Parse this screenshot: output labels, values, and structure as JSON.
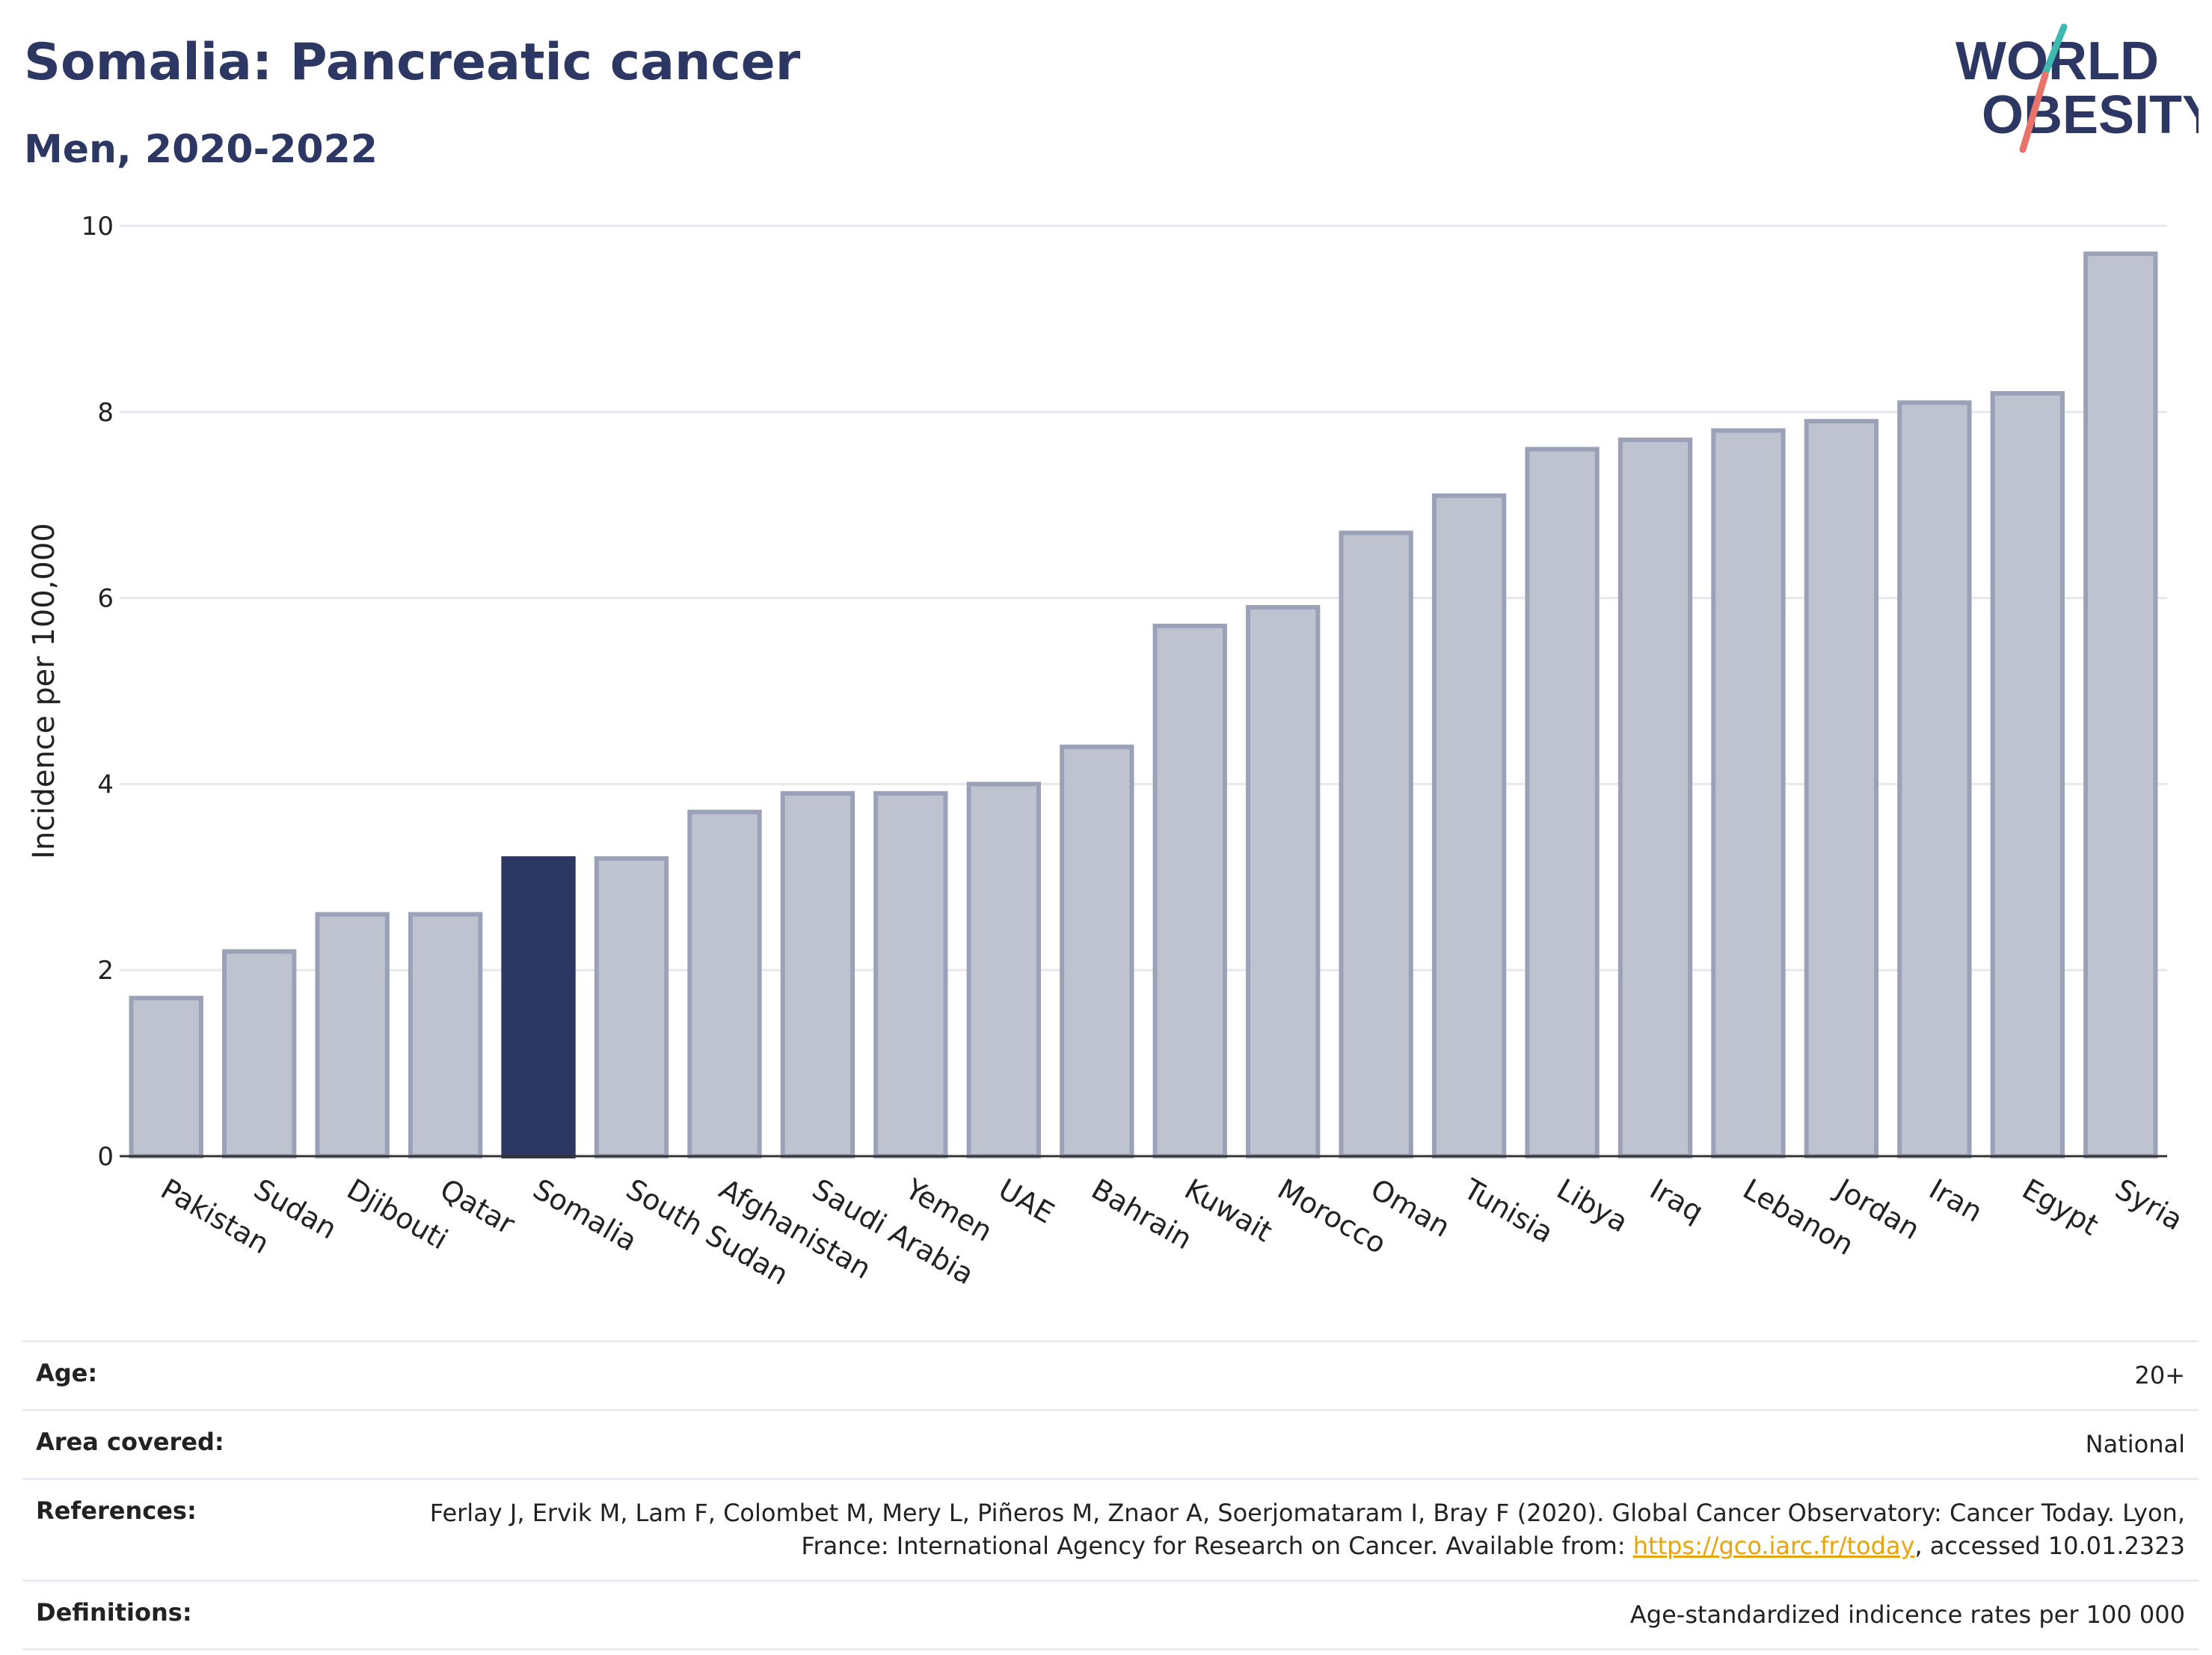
{
  "header": {
    "title": "Somalia: Pancreatic cancer",
    "subtitle": "Men, 2020-2022"
  },
  "logo": {
    "line1": "WORLD",
    "line2": "OBESITY"
  },
  "colors": {
    "highlight": "#2c3763",
    "bar_fill": "#bfc3cf",
    "bar_stroke": "#9ba1b7",
    "title": "#2c3763",
    "grid": "#e6e8ee",
    "link": "#e8a40c"
  },
  "chart_data": {
    "type": "bar",
    "title": "Somalia: Pancreatic cancer",
    "subtitle": "Men, 2020-2022",
    "ylabel": "Incidence per 100,000",
    "xlabel": "",
    "ylim": [
      0,
      10
    ],
    "yticks": [
      0,
      2,
      4,
      6,
      8,
      10
    ],
    "grid": true,
    "highlight": "Somalia",
    "categories": [
      "Pakistan",
      "Sudan",
      "Djibouti",
      "Qatar",
      "Somalia",
      "South Sudan",
      "Afghanistan",
      "Saudi Arabia",
      "Yemen",
      "UAE",
      "Bahrain",
      "Kuwait",
      "Morocco",
      "Oman",
      "Tunisia",
      "Libya",
      "Iraq",
      "Lebanon",
      "Jordan",
      "Iran",
      "Egypt",
      "Syria"
    ],
    "values": [
      1.7,
      2.2,
      2.6,
      2.6,
      3.2,
      3.2,
      3.7,
      3.9,
      3.9,
      4.0,
      4.4,
      5.7,
      5.9,
      6.7,
      7.1,
      7.6,
      7.7,
      7.8,
      7.9,
      8.1,
      8.2,
      9.7
    ]
  },
  "meta": {
    "age": {
      "label": "Age:",
      "value": "20+"
    },
    "area": {
      "label": "Area covered:",
      "value": "National"
    },
    "references": {
      "label": "References:",
      "text_before": "Ferlay J, Ervik M, Lam F, Colombet M, Mery L, Piñeros M, Znaor A, Soerjomataram I, Bray F (2020). Global Cancer Observatory: Cancer Today. Lyon, France: International Agency for Research on Cancer. Available from: ",
      "link": "https://gco.iarc.fr/today",
      "text_after": ", accessed 10.01.2323"
    },
    "definitions": {
      "label": "Definitions:",
      "value": "Age-standardized indicence rates per 100 000"
    }
  }
}
